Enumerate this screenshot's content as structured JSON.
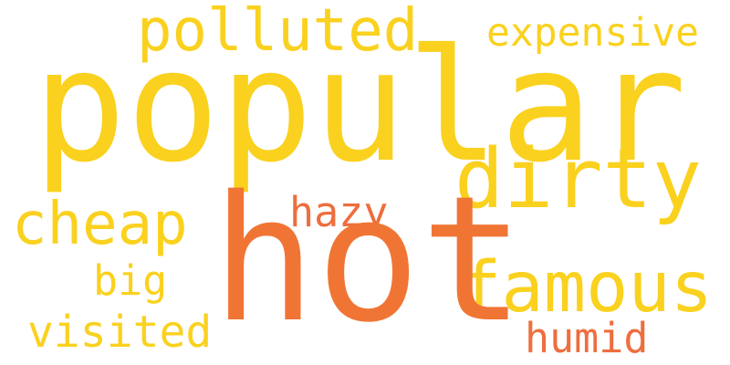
{
  "words": {
    "popular": {
      "text": "popular",
      "color": "#FAD11E"
    },
    "hot": {
      "text": "hot",
      "color": "#F07535"
    },
    "polluted": {
      "text": "polluted",
      "color": "#FAD11E"
    },
    "expensive": {
      "text": "expensive",
      "color": "#FAD11E"
    },
    "dirty": {
      "text": "dirty",
      "color": "#FAD11E"
    },
    "cheap": {
      "text": "cheap",
      "color": "#FAD11E"
    },
    "hazy": {
      "text": "hazy",
      "color": "#EE6E3E"
    },
    "famous": {
      "text": "famous",
      "color": "#FAD11E"
    },
    "big": {
      "text": "big",
      "color": "#FAD11E"
    },
    "visited": {
      "text": "visited",
      "color": "#FAD11E"
    },
    "humid": {
      "text": "humid",
      "color": "#EE6E3E"
    }
  }
}
